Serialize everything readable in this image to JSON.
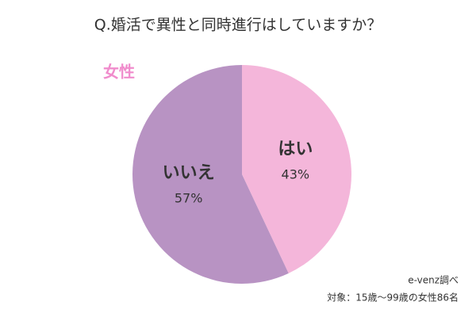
{
  "chart_data": {
    "type": "pie",
    "title": "Q.婚活で異性と同時進行はしていますか？",
    "subtitle": "女性",
    "categories": [
      "はい",
      "いいえ"
    ],
    "values": [
      43,
      57
    ],
    "value_labels": [
      "43%",
      "57%"
    ],
    "colors": [
      "#f4b6da",
      "#b893c3"
    ],
    "notes": [
      "e-venz調べ",
      "対象：15歳〜99歳の女性86名"
    ]
  }
}
